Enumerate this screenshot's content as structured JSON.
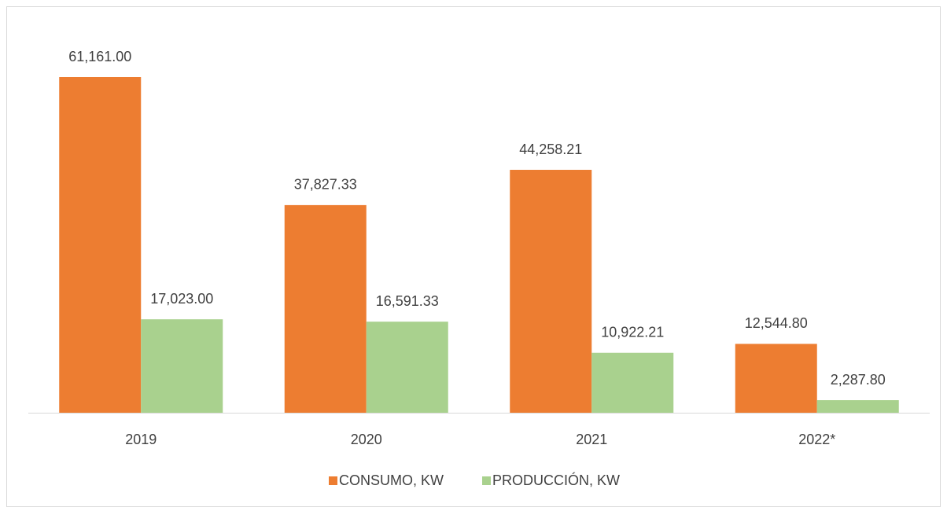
{
  "chart_data": {
    "type": "bar",
    "categories": [
      "2019",
      "2020",
      "2021",
      "2022*"
    ],
    "series": [
      {
        "name": "CONSUMO, KW",
        "color": "#ed7d31",
        "values": [
          61161.0,
          37827.33,
          44258.21,
          12544.8
        ],
        "value_labels": [
          "61,161.00",
          "37,827.33",
          "44,258.21",
          "12,544.80"
        ]
      },
      {
        "name": "PRODUCCIÓN, KW",
        "color": "#a9d18e",
        "values": [
          17023.0,
          16591.33,
          10922.21,
          2287.8
        ],
        "value_labels": [
          "17,023.00",
          "16,591.33",
          "10,922.21",
          "2,287.80"
        ]
      }
    ],
    "legend": "bottom"
  }
}
